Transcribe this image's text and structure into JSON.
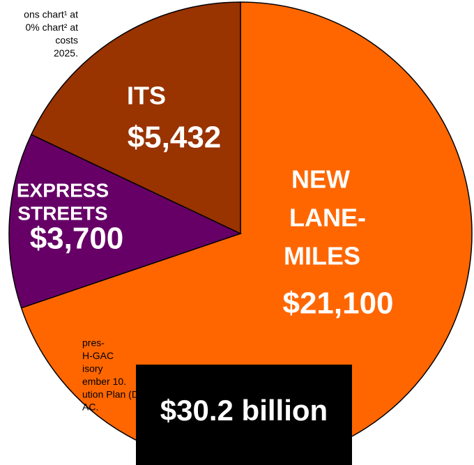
{
  "chart_data": {
    "type": "pie",
    "categories": [
      [
        "NEW",
        "LANE-",
        "MILES"
      ],
      [
        "EXPRESS",
        "STREETS"
      ],
      [
        "ITS"
      ]
    ],
    "values": [
      21100,
      3700,
      5432
    ],
    "value_labels": [
      "$21,100",
      "$3,700",
      "$5,432"
    ],
    "colors": [
      "#ff6600",
      "#660066",
      "#993300"
    ],
    "total_label": "$30.2 billion",
    "notes_top": [
      "ons chart¹ at",
      "0% chart² at",
      "costs",
      "2025."
    ],
    "notes_bottom": [
      "pres-",
      "H-GAC",
      "isory",
      "ember 10.",
      "ution Plan (Draft),",
      "AC."
    ]
  }
}
